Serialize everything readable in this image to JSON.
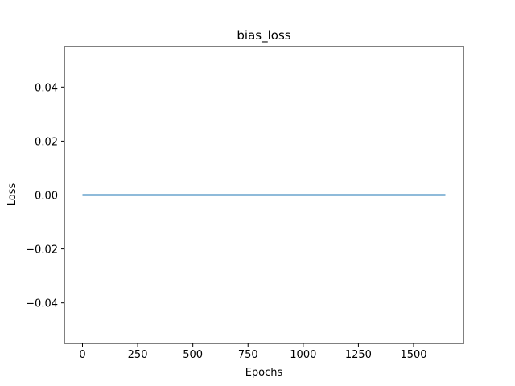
{
  "chart_data": {
    "type": "line",
    "title": "bias_loss",
    "xlabel": "Epochs",
    "ylabel": "Loss",
    "xlim": [
      -82,
      1726
    ],
    "ylim": [
      -0.055,
      0.055
    ],
    "x_ticks": [
      0,
      250,
      500,
      750,
      1000,
      1250,
      1500
    ],
    "x_tick_labels": [
      "0",
      "250",
      "500",
      "750",
      "1000",
      "1250",
      "1500"
    ],
    "y_ticks": [
      -0.04,
      -0.02,
      0.0,
      0.02,
      0.04
    ],
    "y_tick_labels": [
      "−0.04",
      "−0.02",
      "0.00",
      "0.02",
      "0.04"
    ],
    "grid": false,
    "series": [
      {
        "name": "bias_loss",
        "color": "#1f77b4",
        "x": [
          0,
          1644
        ],
        "y": [
          0.0,
          0.0
        ]
      }
    ]
  }
}
